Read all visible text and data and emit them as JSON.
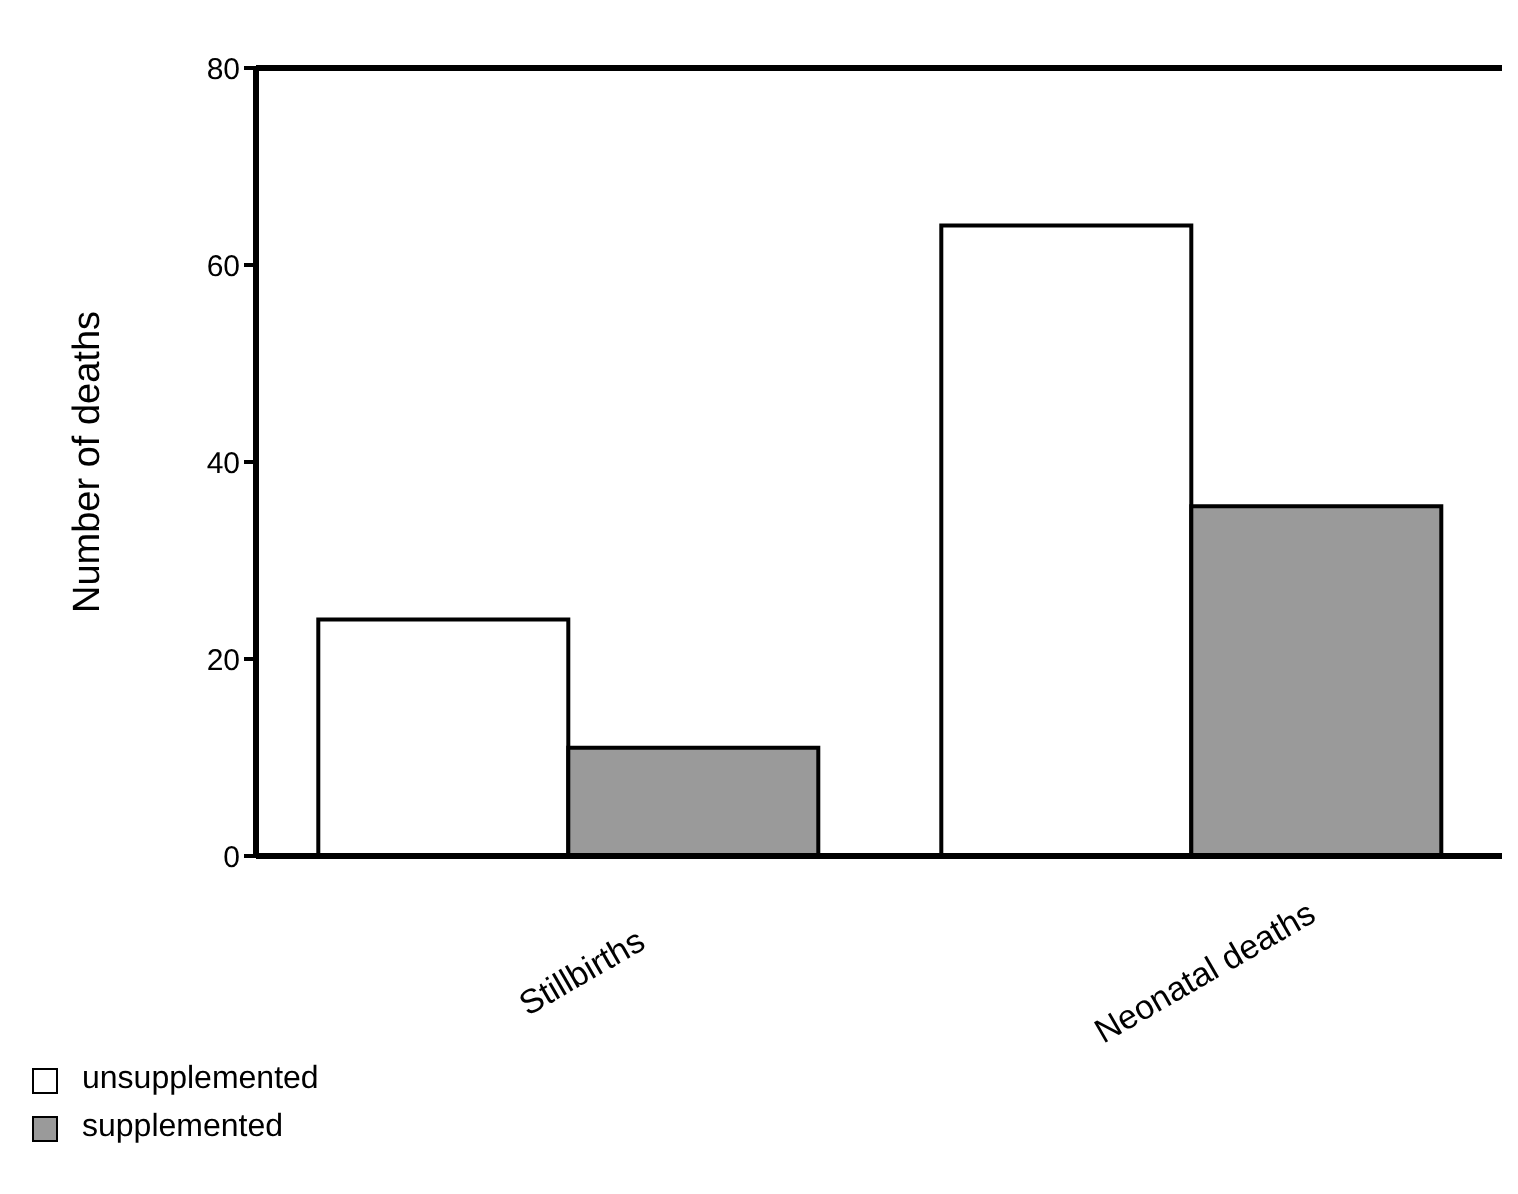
{
  "chart_data": {
    "type": "bar",
    "ylabel": "Number of deaths",
    "categories": [
      "Stillbirths",
      "Neonatal deaths"
    ],
    "series": [
      {
        "name": "unsupplemented",
        "color": "#ffffff",
        "values": [
          24,
          64
        ]
      },
      {
        "name": "supplemented",
        "color": "#9a9a9a",
        "values": [
          11,
          35.5
        ]
      }
    ],
    "ylim": [
      0,
      80
    ],
    "yticks": [
      0,
      20,
      40,
      60,
      80
    ],
    "legend": "bottom left"
  }
}
